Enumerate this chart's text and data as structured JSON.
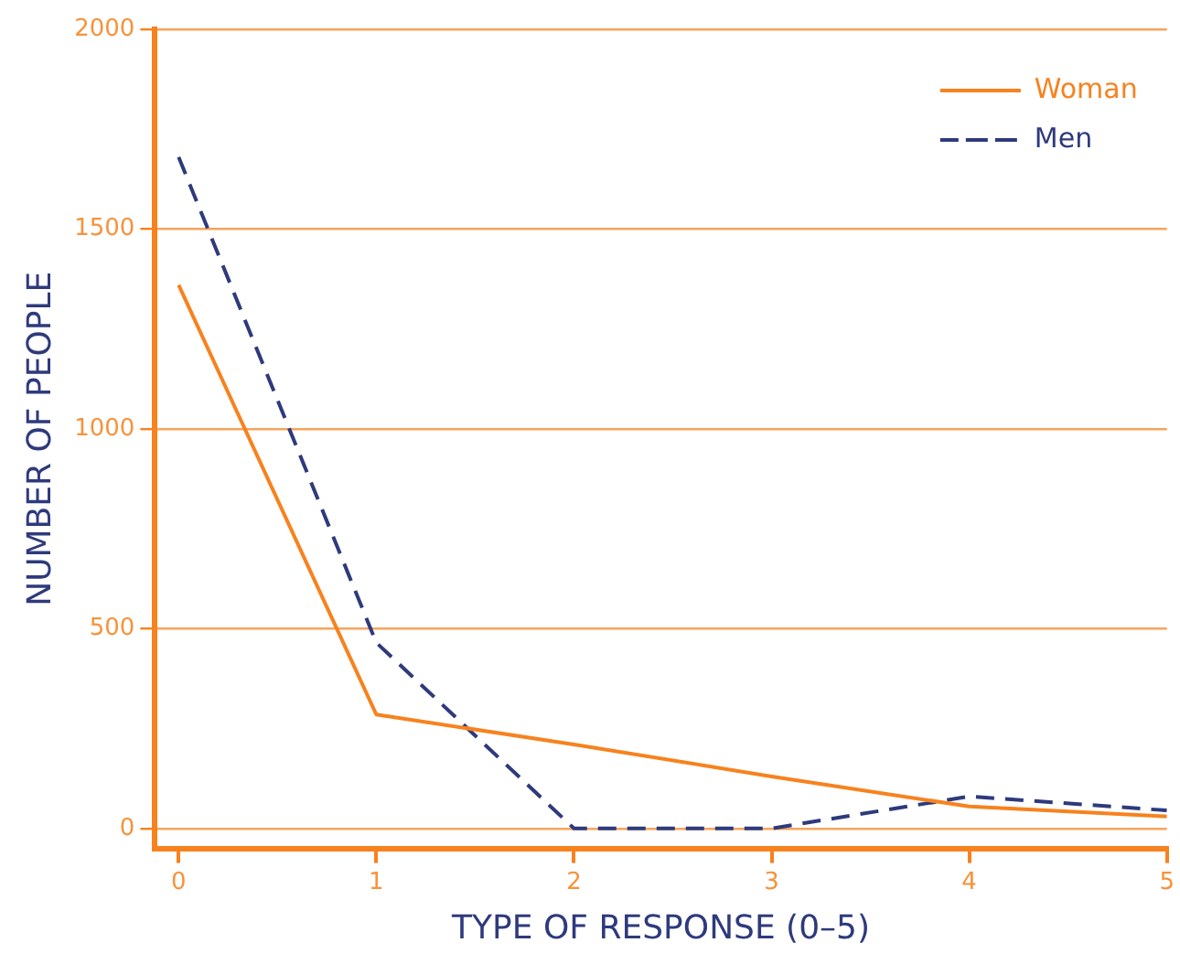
{
  "chart_data": {
    "type": "line",
    "xlabel": "TYPE OF RESPONSE (0–5)",
    "ylabel": "NUMBER OF PEOPLE",
    "x": [
      0,
      1,
      2,
      3,
      4,
      5
    ],
    "series": [
      {
        "name": "Woman",
        "color": "#f7821e",
        "values": [
          1360,
          285,
          210,
          130,
          55,
          30
        ],
        "line_style": "solid"
      },
      {
        "name": "Men",
        "color": "#2e3a7c",
        "values": [
          1680,
          465,
          0,
          0,
          80,
          45
        ],
        "line_style": "dashed"
      }
    ],
    "xlim": [
      -0.12,
      5
    ],
    "xticks": [
      0,
      1,
      2,
      3,
      4,
      5
    ],
    "ylim": [
      -50,
      2000
    ],
    "yticks": [
      0,
      500,
      1000,
      1500,
      2000
    ],
    "grid": "y",
    "legend": "top right",
    "marker": "none"
  }
}
